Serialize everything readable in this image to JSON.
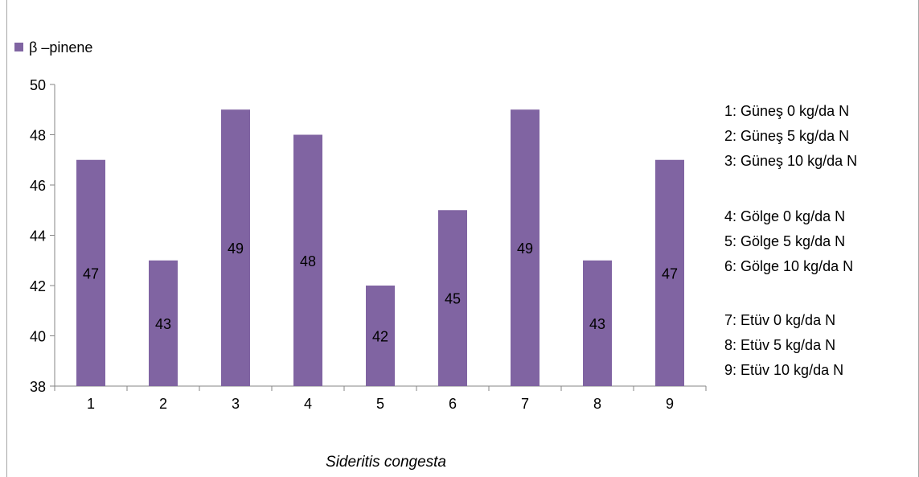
{
  "chart_data": {
    "type": "bar",
    "categories": [
      "1",
      "2",
      "3",
      "4",
      "5",
      "6",
      "7",
      "8",
      "9"
    ],
    "series": [
      {
        "name": "β –pinene",
        "values": [
          47,
          43,
          49,
          48,
          42,
          45,
          49,
          43,
          47
        ]
      }
    ],
    "data_labels": [
      "47",
      "43",
      "49",
      "48",
      "42",
      "45",
      "49",
      "43",
      "47"
    ],
    "xlabel": "Sideritis congesta",
    "ylabel": "",
    "ylim": [
      38,
      50
    ],
    "yticks": [
      "38",
      "40",
      "42",
      "44",
      "46",
      "48",
      "50"
    ],
    "grid": false,
    "legend": "top-left",
    "bar_color": "#8064a2"
  },
  "notes": [
    "1: Güneş 0 kg/da N",
    "2: Güneş 5 kg/da N",
    "3: Güneş 10 kg/da N",
    "4: Gölge 0 kg/da N",
    "5: Gölge 5 kg/da N",
    "6: Gölge 10 kg/da N",
    "7: Etüv 0 kg/da N",
    "8: Etüv 5 kg/da N",
    "9: Etüv 10 kg/da N"
  ]
}
